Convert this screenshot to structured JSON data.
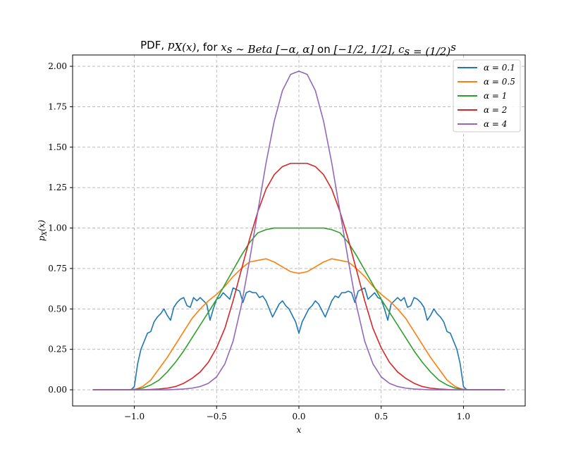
{
  "chart_data": {
    "type": "line",
    "title_parts": [
      {
        "text": "PDF, ",
        "math": false
      },
      {
        "text": "p",
        "math": true
      },
      {
        "text": "X",
        "math": true,
        "sub": true
      },
      {
        "text": "(x)",
        "math": true
      },
      {
        "text": ", for ",
        "math": false
      },
      {
        "text": "x",
        "math": true
      },
      {
        "text": "s",
        "math": true,
        "sub": true
      },
      {
        "text": " ∼ Beta [−α, α]",
        "math": true
      },
      {
        "text": " on ",
        "math": false
      },
      {
        "text": "[−1/2, 1/2], c",
        "math": true
      },
      {
        "text": "s",
        "math": true,
        "sub": true
      },
      {
        "text": " = (1/2)",
        "math": true
      },
      {
        "text": "s",
        "math": true,
        "sup": true
      }
    ],
    "xlabel": "x",
    "ylabel_main": "p",
    "ylabel_sub": "X",
    "ylabel_tail": "(x)",
    "xlim": [
      -1.375,
      1.375
    ],
    "ylim": [
      -0.1,
      2.07
    ],
    "x_ticks": [
      -1.0,
      -0.5,
      0.0,
      0.5,
      1.0
    ],
    "x_tick_labels": [
      "−1.0",
      "−0.5",
      "0.0",
      "0.5",
      "1.0"
    ],
    "y_ticks": [
      0.0,
      0.25,
      0.5,
      0.75,
      1.0,
      1.25,
      1.5,
      1.75,
      2.0
    ],
    "y_tick_labels": [
      "0.00",
      "0.25",
      "0.50",
      "0.75",
      "1.00",
      "1.25",
      "1.50",
      "1.75",
      "2.00"
    ],
    "grid": true,
    "legend_position": "top-right",
    "series": [
      {
        "name": "α = 0.1",
        "color": "#1f77b4",
        "x": [
          -1.25,
          -1.02,
          -1.0,
          -0.98,
          -0.96,
          -0.94,
          -0.92,
          -0.9,
          -0.88,
          -0.86,
          -0.84,
          -0.82,
          -0.8,
          -0.78,
          -0.76,
          -0.74,
          -0.72,
          -0.7,
          -0.68,
          -0.66,
          -0.64,
          -0.62,
          -0.6,
          -0.58,
          -0.56,
          -0.54,
          -0.52,
          -0.5,
          -0.48,
          -0.46,
          -0.44,
          -0.42,
          -0.4,
          -0.38,
          -0.36,
          -0.34,
          -0.32,
          -0.3,
          -0.28,
          -0.26,
          -0.24,
          -0.22,
          -0.2,
          -0.18,
          -0.16,
          -0.14,
          -0.12,
          -0.1,
          -0.08,
          -0.06,
          -0.04,
          -0.02,
          0.0,
          0.02,
          0.04,
          0.06,
          0.08,
          0.1,
          0.12,
          0.14,
          0.16,
          0.18,
          0.2,
          0.22,
          0.24,
          0.26,
          0.28,
          0.3,
          0.32,
          0.34,
          0.36,
          0.38,
          0.4,
          0.42,
          0.44,
          0.46,
          0.48,
          0.5,
          0.52,
          0.54,
          0.56,
          0.58,
          0.6,
          0.62,
          0.64,
          0.66,
          0.68,
          0.7,
          0.72,
          0.74,
          0.76,
          0.78,
          0.8,
          0.82,
          0.84,
          0.86,
          0.88,
          0.9,
          0.92,
          0.94,
          0.96,
          0.98,
          1.0,
          1.02,
          1.25
        ],
        "y": [
          0.0,
          0.0,
          0.02,
          0.16,
          0.25,
          0.3,
          0.35,
          0.36,
          0.42,
          0.45,
          0.47,
          0.5,
          0.46,
          0.43,
          0.51,
          0.54,
          0.56,
          0.57,
          0.52,
          0.51,
          0.57,
          0.55,
          0.57,
          0.55,
          0.53,
          0.43,
          0.5,
          0.56,
          0.57,
          0.6,
          0.58,
          0.56,
          0.63,
          0.62,
          0.61,
          0.54,
          0.6,
          0.61,
          0.6,
          0.6,
          0.57,
          0.58,
          0.55,
          0.5,
          0.45,
          0.49,
          0.53,
          0.55,
          0.52,
          0.5,
          0.46,
          0.42,
          0.35,
          0.42,
          0.46,
          0.5,
          0.52,
          0.55,
          0.53,
          0.49,
          0.45,
          0.5,
          0.55,
          0.58,
          0.57,
          0.6,
          0.6,
          0.61,
          0.6,
          0.54,
          0.61,
          0.62,
          0.63,
          0.56,
          0.58,
          0.6,
          0.57,
          0.56,
          0.5,
          0.43,
          0.53,
          0.55,
          0.57,
          0.55,
          0.57,
          0.51,
          0.52,
          0.57,
          0.56,
          0.54,
          0.51,
          0.43,
          0.46,
          0.5,
          0.47,
          0.45,
          0.42,
          0.36,
          0.35,
          0.3,
          0.25,
          0.16,
          0.02,
          0.0,
          0.0
        ]
      },
      {
        "name": "α = 0.5",
        "color": "#ff7f0e",
        "x": [
          -1.25,
          -1.0,
          -0.95,
          -0.9,
          -0.85,
          -0.8,
          -0.75,
          -0.7,
          -0.65,
          -0.6,
          -0.55,
          -0.5,
          -0.45,
          -0.4,
          -0.35,
          -0.3,
          -0.25,
          -0.2,
          -0.15,
          -0.1,
          -0.05,
          0.0,
          0.05,
          0.1,
          0.15,
          0.2,
          0.25,
          0.3,
          0.35,
          0.4,
          0.45,
          0.5,
          0.55,
          0.6,
          0.65,
          0.7,
          0.75,
          0.8,
          0.85,
          0.9,
          0.95,
          1.0,
          1.25
        ],
        "y": [
          0.0,
          0.0,
          0.02,
          0.06,
          0.13,
          0.2,
          0.28,
          0.36,
          0.44,
          0.5,
          0.55,
          0.59,
          0.64,
          0.7,
          0.75,
          0.79,
          0.8,
          0.81,
          0.79,
          0.76,
          0.73,
          0.72,
          0.73,
          0.76,
          0.79,
          0.81,
          0.8,
          0.79,
          0.75,
          0.7,
          0.64,
          0.59,
          0.55,
          0.5,
          0.44,
          0.36,
          0.28,
          0.2,
          0.13,
          0.06,
          0.02,
          0.0,
          0.0
        ]
      },
      {
        "name": "α = 1",
        "color": "#2ca02c",
        "x": [
          -1.25,
          -1.05,
          -1.0,
          -0.95,
          -0.9,
          -0.85,
          -0.8,
          -0.75,
          -0.7,
          -0.65,
          -0.6,
          -0.55,
          -0.5,
          -0.45,
          -0.4,
          -0.35,
          -0.3,
          -0.25,
          -0.2,
          -0.15,
          -0.1,
          -0.05,
          0.0,
          0.05,
          0.1,
          0.15,
          0.2,
          0.25,
          0.3,
          0.35,
          0.4,
          0.45,
          0.5,
          0.55,
          0.6,
          0.65,
          0.7,
          0.75,
          0.8,
          0.85,
          0.9,
          0.95,
          1.0,
          1.05,
          1.25
        ],
        "y": [
          0.0,
          0.0,
          0.003,
          0.01,
          0.03,
          0.06,
          0.11,
          0.17,
          0.24,
          0.32,
          0.4,
          0.48,
          0.56,
          0.65,
          0.74,
          0.83,
          0.91,
          0.97,
          0.99,
          1.0,
          1.0,
          1.0,
          1.0,
          1.0,
          1.0,
          1.0,
          0.99,
          0.97,
          0.91,
          0.83,
          0.74,
          0.65,
          0.56,
          0.48,
          0.4,
          0.32,
          0.24,
          0.17,
          0.11,
          0.06,
          0.03,
          0.01,
          0.003,
          0.0,
          0.0
        ]
      },
      {
        "name": "α = 2",
        "color": "#d62728",
        "x": [
          -1.25,
          -0.95,
          -0.9,
          -0.85,
          -0.8,
          -0.75,
          -0.7,
          -0.65,
          -0.6,
          -0.55,
          -0.5,
          -0.45,
          -0.4,
          -0.35,
          -0.3,
          -0.25,
          -0.2,
          -0.15,
          -0.1,
          -0.05,
          0.0,
          0.05,
          0.1,
          0.15,
          0.2,
          0.25,
          0.3,
          0.35,
          0.4,
          0.45,
          0.5,
          0.55,
          0.6,
          0.65,
          0.7,
          0.75,
          0.8,
          0.85,
          0.9,
          0.95,
          1.25
        ],
        "y": [
          0.0,
          0.0,
          0.002,
          0.005,
          0.01,
          0.02,
          0.04,
          0.07,
          0.11,
          0.17,
          0.26,
          0.38,
          0.55,
          0.74,
          0.93,
          1.1,
          1.24,
          1.33,
          1.38,
          1.4,
          1.4,
          1.4,
          1.38,
          1.33,
          1.24,
          1.1,
          0.93,
          0.74,
          0.55,
          0.38,
          0.26,
          0.17,
          0.11,
          0.07,
          0.04,
          0.02,
          0.01,
          0.005,
          0.002,
          0.0,
          0.0
        ]
      },
      {
        "name": "α = 4",
        "color": "#9467bd",
        "x": [
          -1.25,
          -0.8,
          -0.75,
          -0.7,
          -0.65,
          -0.6,
          -0.55,
          -0.5,
          -0.45,
          -0.4,
          -0.35,
          -0.3,
          -0.25,
          -0.2,
          -0.15,
          -0.1,
          -0.05,
          0.0,
          0.05,
          0.1,
          0.15,
          0.2,
          0.25,
          0.3,
          0.35,
          0.4,
          0.45,
          0.5,
          0.55,
          0.6,
          0.65,
          0.7,
          0.75,
          0.8,
          1.25
        ],
        "y": [
          0.0,
          0.0,
          0.002,
          0.005,
          0.01,
          0.02,
          0.04,
          0.08,
          0.16,
          0.3,
          0.52,
          0.8,
          1.1,
          1.4,
          1.66,
          1.85,
          1.95,
          1.97,
          1.95,
          1.85,
          1.66,
          1.4,
          1.1,
          0.8,
          0.52,
          0.3,
          0.16,
          0.08,
          0.04,
          0.02,
          0.01,
          0.005,
          0.002,
          0.0,
          0.0
        ]
      }
    ]
  }
}
